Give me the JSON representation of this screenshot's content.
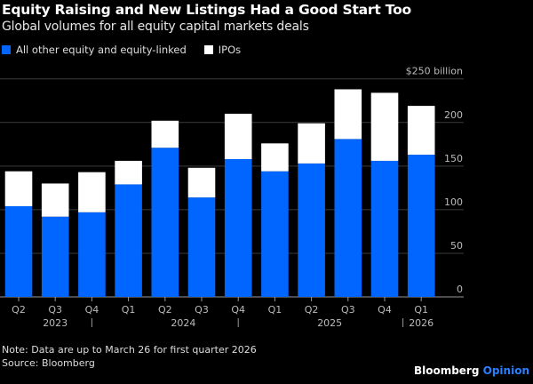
{
  "title": "Equity Raising and New Listings Had a Good Start Too",
  "subtitle": "Global volumes for all equity capital markets deals",
  "note": "Note: Data are up to March 26 for first quarter 2026",
  "source": "Source: Bloomberg",
  "brand": {
    "name": "Bloomberg",
    "suffix": "Opinion"
  },
  "colors": {
    "equity": "#0066ff",
    "ipos": "#ffffff",
    "brand_accent": "#2a7fff"
  },
  "chart_data": {
    "type": "bar",
    "stacked": true,
    "categories": [
      "Q2",
      "Q3",
      "Q4",
      "Q1",
      "Q2",
      "Q3",
      "Q4",
      "Q1",
      "Q2",
      "Q3",
      "Q4",
      "Q1"
    ],
    "years": [
      {
        "label": "2023",
        "under": [
          0,
          2
        ]
      },
      {
        "label": "2024",
        "under": [
          3,
          6
        ]
      },
      {
        "label": "2025",
        "under": [
          7,
          10
        ]
      },
      {
        "label": "2026",
        "under": [
          11,
          11
        ]
      }
    ],
    "series": [
      {
        "name": "All other equity and equity-linked",
        "color": "#0066ff",
        "values": [
          104,
          92,
          97,
          129,
          171,
          114,
          158,
          144,
          153,
          181,
          156,
          163
        ]
      },
      {
        "name": "IPOs",
        "color": "#ffffff",
        "values": [
          40,
          38,
          46,
          27,
          31,
          34,
          52,
          32,
          46,
          57,
          78,
          56
        ]
      }
    ],
    "ylim": [
      0,
      250
    ],
    "yticks": [
      0,
      50,
      100,
      150,
      200,
      250
    ],
    "ytick_labels": [
      "0",
      "50",
      "100",
      "150",
      "200",
      "$250 billion"
    ],
    "y_axis_position": "right",
    "grid": true,
    "legend": "top-left"
  }
}
